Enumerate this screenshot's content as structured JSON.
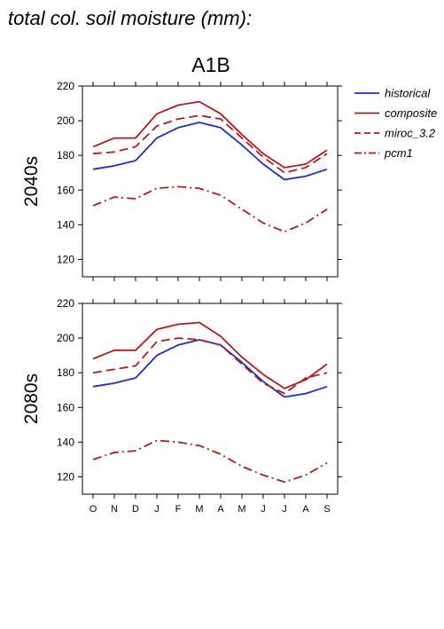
{
  "page_heading": "total col. soil moisture (mm):",
  "colors": {
    "historical": "#1f2fbf",
    "composite": "#b3191e",
    "miroc_3.2": "#b3191e",
    "pcm1": "#b3191e"
  },
  "chart_data": {
    "type": "line",
    "title": "A1B",
    "categories": [
      "O",
      "N",
      "D",
      "J",
      "F",
      "M",
      "A",
      "M",
      "J",
      "J",
      "A",
      "S"
    ],
    "ylim": [
      110,
      220
    ],
    "yticks": [
      120,
      140,
      160,
      180,
      200,
      220
    ],
    "grid": false,
    "legend_position": "right",
    "legend": [
      {
        "name": "historical",
        "style": "solid"
      },
      {
        "name": "composite",
        "style": "solid"
      },
      {
        "name": "miroc_3.2",
        "style": "dashed"
      },
      {
        "name": "pcm1",
        "style": "dashdot"
      }
    ],
    "panels": [
      {
        "label": "2040s",
        "series": [
          {
            "name": "historical",
            "values": [
              172,
              174,
              177,
              190,
              196,
              199,
              196,
              186,
              175,
              166,
              168,
              172
            ]
          },
          {
            "name": "composite",
            "values": [
              185,
              190,
              190,
              204,
              209,
              211,
              204,
              192,
              181,
              173,
              175,
              183
            ]
          },
          {
            "name": "miroc_3.2",
            "values": [
              181,
              182,
              185,
              197,
              201,
              203,
              201,
              190,
              179,
              170,
              173,
              181
            ]
          },
          {
            "name": "pcm1",
            "values": [
              151,
              156,
              155,
              161,
              162,
              161,
              157,
              149,
              141,
              136,
              141,
              149
            ]
          }
        ]
      },
      {
        "label": "2080s",
        "series": [
          {
            "name": "historical",
            "values": [
              172,
              174,
              177,
              190,
              196,
              199,
              196,
              186,
              175,
              166,
              168,
              172
            ]
          },
          {
            "name": "composite",
            "values": [
              188,
              193,
              193,
              205,
              208,
              209,
              201,
              189,
              179,
              171,
              176,
              185
            ]
          },
          {
            "name": "miroc_3.2",
            "values": [
              180,
              182,
              184,
              198,
              200,
              199,
              196,
              185,
              174,
              168,
              177,
              180
            ]
          },
          {
            "name": "pcm1",
            "values": [
              130,
              134,
              135,
              141,
              140,
              138,
              133,
              126,
              121,
              117,
              121,
              128
            ]
          }
        ]
      }
    ]
  }
}
